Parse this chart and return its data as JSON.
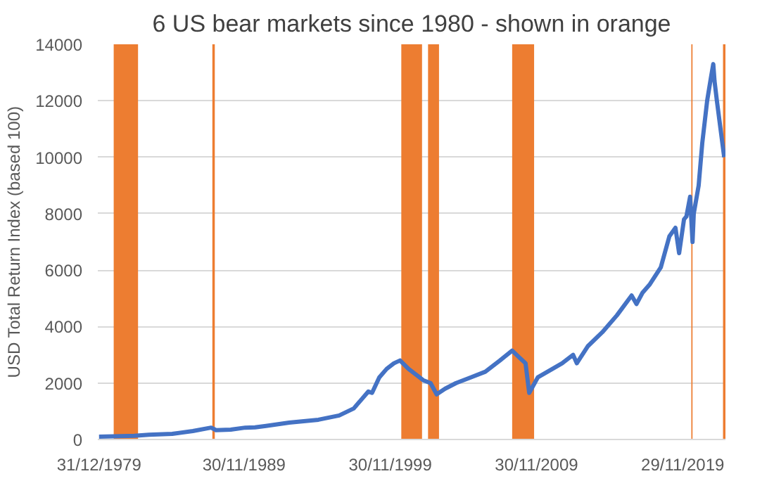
{
  "chart_data": {
    "type": "line",
    "title": "6 US bear markets since 1980 - shown in orange",
    "ylabel": "USD Total Return Index (based 100)",
    "x": [
      "1980-01",
      "1981-01",
      "1982-06",
      "1983-06",
      "1985-01",
      "1986-06",
      "1987-09",
      "1988-01",
      "1989-01",
      "1990-01",
      "1990-09",
      "1991-06",
      "1993-01",
      "1995-01",
      "1996-06",
      "1997-06",
      "1998-06",
      "1998-09",
      "1999-03",
      "1999-09",
      "2000-03",
      "2000-08",
      "2001-03",
      "2001-09",
      "2002-03",
      "2002-09",
      "2003-02",
      "2003-09",
      "2004-06",
      "2005-06",
      "2006-06",
      "2007-06",
      "2008-04",
      "2008-10",
      "2009-03",
      "2009-06",
      "2010-01",
      "2011-01",
      "2011-09",
      "2012-06",
      "2012-09",
      "2013-06",
      "2014-06",
      "2015-06",
      "2016-06",
      "2016-10",
      "2017-03",
      "2017-09",
      "2018-06",
      "2019-01",
      "2019-06",
      "2019-09",
      "2020-01",
      "2020-03",
      "2020-06",
      "2020-08",
      "2020-09",
      "2021-01",
      "2021-04",
      "2021-08",
      "2021-11",
      "2022-01",
      "2022-02",
      "2022-04",
      "2022-07",
      "2022-10"
    ],
    "series": [
      {
        "color": "#4472c4",
        "values": [
          100,
          110,
          130,
          170,
          200,
          300,
          420,
          330,
          350,
          420,
          430,
          480,
          600,
          700,
          850,
          1100,
          1700,
          1650,
          2200,
          2500,
          2700,
          2800,
          2500,
          2300,
          2100,
          2000,
          1600,
          1800,
          2000,
          2200,
          2400,
          2800,
          3150,
          2900,
          2700,
          1650,
          2200,
          2500,
          2700,
          3000,
          2700,
          3300,
          3800,
          4400,
          5100,
          4800,
          5200,
          5500,
          6100,
          7200,
          7500,
          6600,
          7800,
          7900,
          8600,
          7000,
          8000,
          9000,
          10500,
          12000,
          12800,
          13300,
          12700,
          12000,
          11000,
          10000
        ]
      }
    ],
    "xlim": [
      "1979-12",
      "2022-11"
    ],
    "ylim": [
      0,
      14000
    ],
    "yticks": [
      0,
      2000,
      4000,
      6000,
      8000,
      10000,
      12000,
      14000
    ],
    "xticks": [
      {
        "value": "1979-12-31",
        "label": "31/12/1979"
      },
      {
        "value": "1989-11-30",
        "label": "30/11/1989"
      },
      {
        "value": "1999-11-30",
        "label": "30/11/1999"
      },
      {
        "value": "2009-11-30",
        "label": "30/11/2009"
      },
      {
        "value": "2019-11-29",
        "label": "29/11/2019"
      }
    ],
    "bands": [
      {
        "axis": "x",
        "from": "1981-01",
        "to": "1982-09",
        "color": "#ed7d31"
      },
      {
        "axis": "x",
        "from": "1987-10",
        "to": "1987-12",
        "color": "#ed7d31"
      },
      {
        "axis": "x",
        "from": "2000-09",
        "to": "2002-02",
        "color": "#ed7d31"
      },
      {
        "axis": "x",
        "from": "2002-07",
        "to": "2003-04",
        "color": "#ed7d31"
      },
      {
        "axis": "x",
        "from": "2008-04",
        "to": "2009-10",
        "color": "#ed7d31"
      },
      {
        "axis": "x",
        "from": "2020-07",
        "to": "2020-08",
        "color": "#ed7d31"
      },
      {
        "axis": "x",
        "from": "2022-09",
        "to": "2022-11",
        "color": "#ed7d31"
      }
    ],
    "grid": "y"
  }
}
